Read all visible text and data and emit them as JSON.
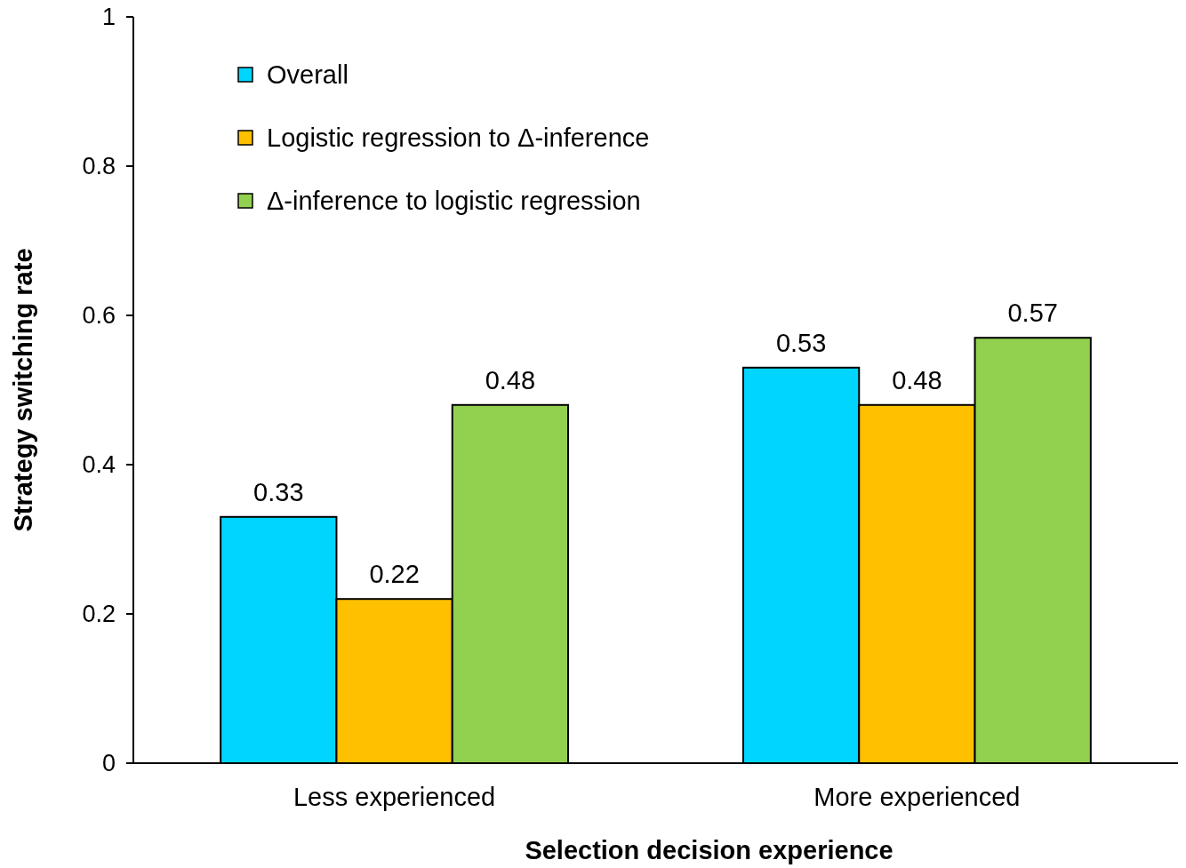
{
  "chart_data": {
    "type": "bar",
    "xlabel": "Selection decision experience",
    "ylabel": "Strategy switching rate",
    "categories": [
      "Less experienced",
      "More experienced"
    ],
    "series": [
      {
        "name": "Overall",
        "color": "#00d5ff",
        "values": [
          0.33,
          0.53
        ]
      },
      {
        "name": "Logistic regression to Δ-inference",
        "color": "#ffc000",
        "values": [
          0.22,
          0.48
        ]
      },
      {
        "name": "Δ-inference to logistic regression",
        "color": "#92d050",
        "values": [
          0.48,
          0.57
        ]
      }
    ],
    "ylim": [
      0,
      1
    ],
    "yticks": [
      0,
      0.2,
      0.4,
      0.6,
      0.8,
      1
    ],
    "grid": false,
    "legend": "top left",
    "data_labels": true
  }
}
